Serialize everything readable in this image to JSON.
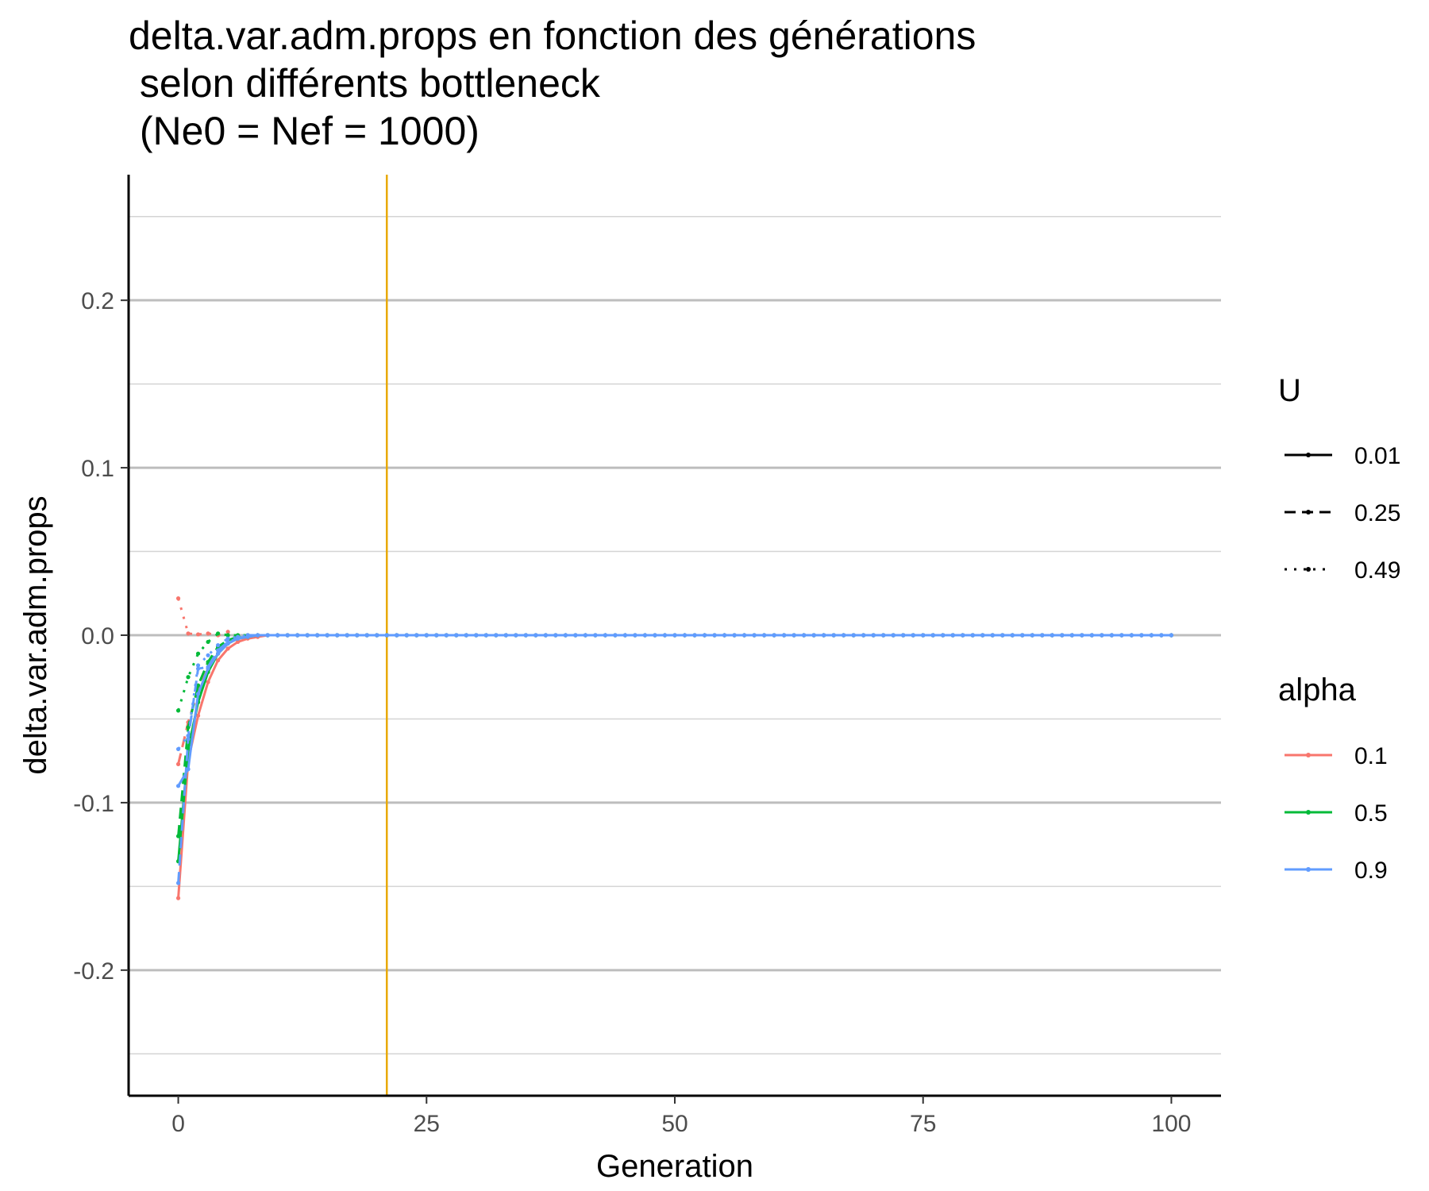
{
  "chart_data": {
    "type": "line",
    "title_lines": [
      "delta.var.adm.props en fonction des générations",
      " selon différents bottleneck",
      " (Ne0 = Nef = 1000)"
    ],
    "xlabel": "Generation",
    "ylabel": "delta.var.adm.props",
    "xlim": [
      -5,
      105
    ],
    "ylim": [
      -0.275,
      0.275
    ],
    "x_ticks": [
      0,
      25,
      50,
      75,
      100
    ],
    "x_tick_labels": [
      "0",
      "25",
      "50",
      "75",
      "100"
    ],
    "y_ticks": [
      -0.2,
      -0.1,
      0.0,
      0.1,
      0.2
    ],
    "y_tick_labels": [
      "-0.2",
      "-0.1",
      "0.0",
      "0.1",
      "0.2"
    ],
    "y_minor_ticks": [
      -0.25,
      -0.15,
      -0.05,
      0.05,
      0.15,
      0.25
    ],
    "grid": true,
    "vline": {
      "x": 21,
      "color": "#E8A900"
    },
    "legend": {
      "placement": "right",
      "linetype_title": "U",
      "linetype_entries": [
        {
          "label": "0.01",
          "dash": "solid"
        },
        {
          "label": "0.25",
          "dash": "dashed"
        },
        {
          "label": "0.49",
          "dash": "dotted"
        }
      ],
      "color_title": "alpha",
      "color_entries": [
        {
          "label": "0.1",
          "color": "#F8766D"
        },
        {
          "label": "0.5",
          "color": "#00BA38"
        },
        {
          "label": "0.9",
          "color": "#619CFF"
        }
      ]
    },
    "series": [
      {
        "alpha": "0.1",
        "U": "0.01",
        "color": "#F8766D",
        "dash": "solid",
        "head": [
          [
            0,
            -0.157
          ],
          [
            1,
            -0.075
          ],
          [
            2,
            -0.048
          ],
          [
            3,
            -0.028
          ],
          [
            4,
            -0.015
          ],
          [
            5,
            -0.008
          ],
          [
            6,
            -0.004
          ],
          [
            7,
            -0.002
          ],
          [
            8,
            -0.001
          ],
          [
            9,
            0
          ]
        ]
      },
      {
        "alpha": "0.1",
        "U": "0.25",
        "color": "#F8766D",
        "dash": "dashed",
        "head": [
          [
            0,
            -0.077
          ],
          [
            1,
            -0.052
          ],
          [
            2,
            -0.033
          ],
          [
            3,
            -0.02
          ],
          [
            4,
            -0.011
          ],
          [
            5,
            -0.005
          ],
          [
            6,
            -0.002
          ],
          [
            7,
            -0.001
          ],
          [
            8,
            0
          ]
        ]
      },
      {
        "alpha": "0.1",
        "U": "0.49",
        "color": "#F8766D",
        "dash": "dotted",
        "head": [
          [
            0,
            0.022
          ],
          [
            1,
            0.001
          ],
          [
            2,
            0.0005
          ],
          [
            3,
            0.001
          ],
          [
            4,
            0.0
          ],
          [
            5,
            0.002
          ],
          [
            6,
            0.0
          ],
          [
            7,
            0
          ]
        ]
      },
      {
        "alpha": "0.5",
        "U": "0.01",
        "color": "#00BA38",
        "dash": "solid",
        "head": [
          [
            0,
            -0.135
          ],
          [
            1,
            -0.068
          ],
          [
            2,
            -0.04
          ],
          [
            3,
            -0.022
          ],
          [
            4,
            -0.011
          ],
          [
            5,
            -0.005
          ],
          [
            6,
            -0.002
          ],
          [
            7,
            -0.001
          ],
          [
            8,
            0
          ]
        ]
      },
      {
        "alpha": "0.5",
        "U": "0.25",
        "color": "#00BA38",
        "dash": "dashed",
        "head": [
          [
            0,
            -0.12
          ],
          [
            1,
            -0.055
          ],
          [
            2,
            -0.03
          ],
          [
            3,
            -0.016
          ],
          [
            4,
            -0.007
          ],
          [
            5,
            -0.003
          ],
          [
            6,
            -0.001
          ],
          [
            7,
            0
          ]
        ]
      },
      {
        "alpha": "0.5",
        "U": "0.49",
        "color": "#00BA38",
        "dash": "dotted",
        "head": [
          [
            0,
            -0.045
          ],
          [
            1,
            -0.025
          ],
          [
            2,
            -0.011
          ],
          [
            3,
            -0.004
          ],
          [
            4,
            0.001
          ],
          [
            5,
            0.0
          ],
          [
            6,
            0
          ]
        ]
      },
      {
        "alpha": "0.9",
        "U": "0.01",
        "color": "#619CFF",
        "dash": "solid",
        "head": [
          [
            0,
            -0.09
          ],
          [
            1,
            -0.08
          ],
          [
            2,
            -0.035
          ],
          [
            3,
            -0.02
          ],
          [
            4,
            -0.011
          ],
          [
            5,
            -0.005
          ],
          [
            6,
            -0.002
          ],
          [
            7,
            -0.001
          ],
          [
            8,
            0
          ]
        ]
      },
      {
        "alpha": "0.9",
        "U": "0.25",
        "color": "#619CFF",
        "dash": "dashed",
        "head": [
          [
            0,
            -0.148
          ],
          [
            1,
            -0.062
          ],
          [
            2,
            -0.02
          ],
          [
            3,
            -0.019
          ],
          [
            4,
            -0.009
          ],
          [
            5,
            -0.004
          ],
          [
            6,
            -0.002
          ],
          [
            7,
            0
          ]
        ]
      },
      {
        "alpha": "0.9",
        "U": "0.49",
        "color": "#619CFF",
        "dash": "dotted",
        "head": [
          [
            0,
            -0.068
          ],
          [
            1,
            -0.06
          ],
          [
            2,
            -0.018
          ],
          [
            3,
            -0.012
          ],
          [
            4,
            -0.006
          ],
          [
            5,
            -0.002
          ],
          [
            6,
            -0.001
          ],
          [
            7,
            0
          ]
        ]
      }
    ],
    "tail_value": 0,
    "x_max": 100
  }
}
